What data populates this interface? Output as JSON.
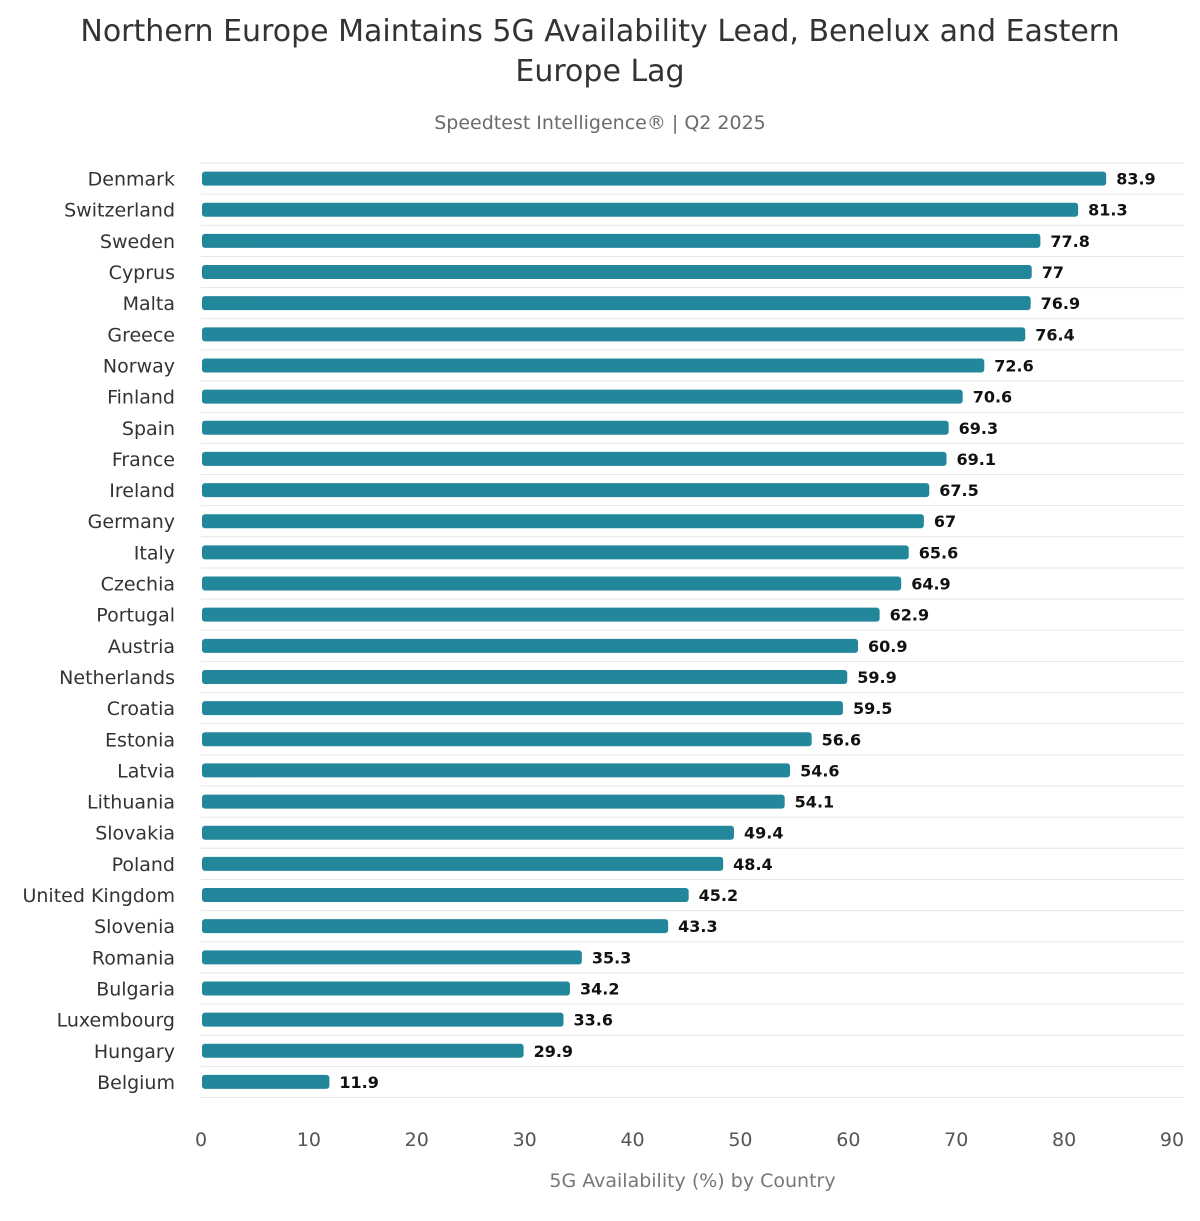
{
  "chart_data": {
    "type": "bar",
    "orientation": "horizontal",
    "title": "Northern Europe Maintains 5G Availability Lead, Benelux and Eastern Europe Lag",
    "subtitle": "Speedtest Intelligence® | Q2 2025",
    "xlabel": "5G Availability (%) by Country",
    "ylabel": "",
    "xlim": [
      0,
      90
    ],
    "xticks": [
      "0",
      "10",
      "20",
      "30",
      "40",
      "50",
      "60",
      "70",
      "80",
      "90"
    ],
    "bar_color": "#23879b",
    "categories": [
      "Denmark",
      "Switzerland",
      "Sweden",
      "Cyprus",
      "Malta",
      "Greece",
      "Norway",
      "Finland",
      "Spain",
      "France",
      "Ireland",
      "Germany",
      "Italy",
      "Czechia",
      "Portugal",
      "Austria",
      "Netherlands",
      "Croatia",
      "Estonia",
      "Latvia",
      "Lithuania",
      "Slovakia",
      "Poland",
      "United Kingdom",
      "Slovenia",
      "Romania",
      "Bulgaria",
      "Luxembourg",
      "Hungary",
      "Belgium"
    ],
    "values": [
      83.9,
      81.3,
      77.8,
      77,
      76.9,
      76.4,
      72.6,
      70.6,
      69.3,
      69.1,
      67.5,
      67,
      65.6,
      64.9,
      62.9,
      60.9,
      59.9,
      59.5,
      56.6,
      54.6,
      54.1,
      49.4,
      48.4,
      45.2,
      43.3,
      35.3,
      34.2,
      33.6,
      29.9,
      11.9
    ],
    "value_labels": [
      "83.9",
      "81.3",
      "77.8",
      "77",
      "76.9",
      "76.4",
      "72.6",
      "70.6",
      "69.3",
      "69.1",
      "67.5",
      "67",
      "65.6",
      "64.9",
      "62.9",
      "60.9",
      "59.9",
      "59.5",
      "56.6",
      "54.6",
      "54.1",
      "49.4",
      "48.4",
      "45.2",
      "43.3",
      "35.3",
      "34.2",
      "33.6",
      "29.9",
      "11.9"
    ]
  }
}
